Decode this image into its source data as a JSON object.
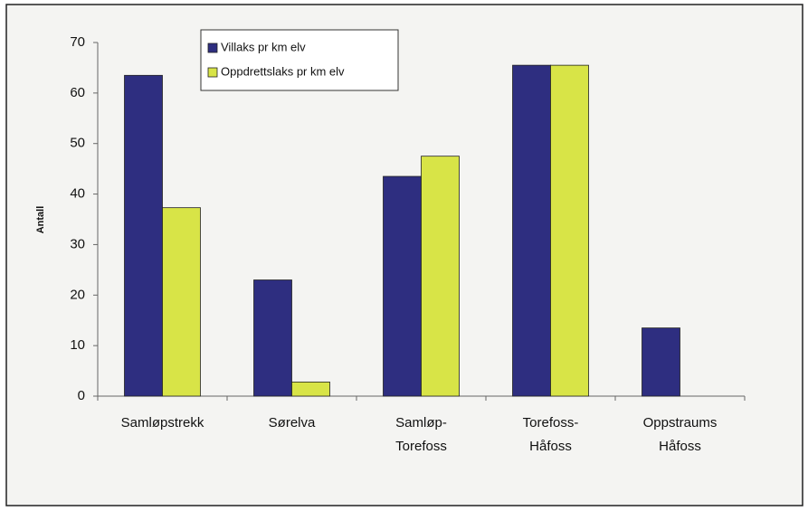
{
  "chart_data": {
    "type": "bar",
    "y_label": "Antall",
    "categories": [
      "Samløpstrekk",
      "Sørelva",
      "Samløp-\nTorefoss",
      "Torefoss-\nHåfoss",
      "Oppstraums\nHåfoss"
    ],
    "series": [
      {
        "name": "Villaks pr km elv",
        "color": "#2e2e80",
        "values": [
          63.5,
          23,
          43.5,
          65.5,
          13.5
        ]
      },
      {
        "name": "Oppdrettslaks pr km elv",
        "color": "#d8e447",
        "values": [
          37.3,
          2.8,
          47.5,
          65.5,
          null
        ]
      }
    ],
    "ylim": [
      0,
      70
    ],
    "yticks": [
      0,
      10,
      20,
      30,
      40,
      50,
      60,
      70
    ],
    "grid": false,
    "legend": "top-left"
  }
}
